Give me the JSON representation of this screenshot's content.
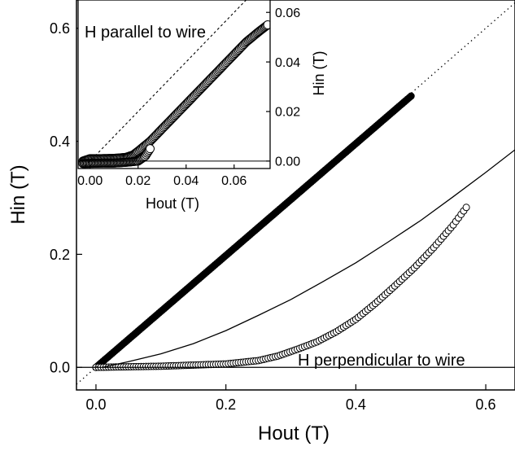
{
  "chart_data": [
    {
      "type": "scatter",
      "xlabel": "Hout (T)",
      "ylabel": "Hin (T)",
      "xlim": [
        -0.03,
        0.645
      ],
      "ylim": [
        -0.04,
        0.65
      ],
      "xticks": [
        "0.0",
        "0.2",
        "0.4",
        "0.6"
      ],
      "yticks": [
        "0.0",
        "0.2",
        "0.4",
        "0.6"
      ],
      "annotations": [
        "H perpendicular to wire"
      ],
      "series": [
        {
          "type": "scatter",
          "marker": "filled-circle",
          "x_from": 0.0,
          "x_to": 0.485,
          "values": [
            [
              0.0,
              0.0
            ],
            [
              0.485,
              0.48
            ]
          ]
        },
        {
          "type": "scatter",
          "marker": "open-circle",
          "values": [
            [
              0.0,
              0.0
            ],
            [
              0.05,
              0.001
            ],
            [
              0.1,
              0.002
            ],
            [
              0.15,
              0.004
            ],
            [
              0.2,
              0.006
            ],
            [
              0.25,
              0.012
            ],
            [
              0.28,
              0.02
            ],
            [
              0.31,
              0.032
            ],
            [
              0.34,
              0.045
            ],
            [
              0.37,
              0.063
            ],
            [
              0.4,
              0.085
            ],
            [
              0.43,
              0.113
            ],
            [
              0.46,
              0.144
            ],
            [
              0.49,
              0.176
            ],
            [
              0.52,
              0.212
            ],
            [
              0.55,
              0.252
            ],
            [
              0.57,
              0.283
            ]
          ]
        },
        {
          "type": "line",
          "style": "solid",
          "values": [
            [
              0.01,
              0.0
            ],
            [
              0.05,
              0.01
            ],
            [
              0.1,
              0.024
            ],
            [
              0.15,
              0.042
            ],
            [
              0.2,
              0.065
            ],
            [
              0.25,
              0.092
            ],
            [
              0.3,
              0.12
            ],
            [
              0.35,
              0.152
            ],
            [
              0.4,
              0.185
            ],
            [
              0.45,
              0.222
            ],
            [
              0.5,
              0.26
            ],
            [
              0.55,
              0.302
            ],
            [
              0.6,
              0.345
            ],
            [
              0.645,
              0.385
            ]
          ]
        },
        {
          "type": "line",
          "style": "dotted",
          "values": [
            [
              -0.03,
              -0.03
            ],
            [
              0.645,
              0.645
            ]
          ]
        },
        {
          "type": "line",
          "style": "solid",
          "values": [
            [
              -0.03,
              0.0
            ],
            [
              0.645,
              0.0
            ]
          ]
        }
      ]
    },
    {
      "type": "scatter",
      "xlabel": "Hout (T)",
      "ylabel": "Hin (T)",
      "xlim": [
        -0.005,
        0.075
      ],
      "ylim": [
        -0.003,
        0.065
      ],
      "xticks": [
        "0.00",
        "0.02",
        "0.04",
        "0.06"
      ],
      "yticks": [
        "0.00",
        "0.02",
        "0.04",
        "0.06"
      ],
      "annotations": [
        "H parallel to wire"
      ],
      "series": [
        {
          "type": "scatter",
          "marker": "open-circle",
          "values": [
            [
              -0.003,
              0.0
            ],
            [
              0.0,
              0.001
            ],
            [
              0.005,
              0.001
            ],
            [
              0.01,
              0.0011
            ],
            [
              0.015,
              0.0015
            ],
            [
              0.018,
              0.0025
            ],
            [
              0.02,
              0.004
            ],
            [
              0.025,
              0.008
            ],
            [
              0.03,
              0.013
            ],
            [
              0.035,
              0.018
            ],
            [
              0.04,
              0.023
            ],
            [
              0.045,
              0.028
            ],
            [
              0.05,
              0.033
            ],
            [
              0.055,
              0.038
            ],
            [
              0.06,
              0.043
            ],
            [
              0.065,
              0.048
            ],
            [
              0.07,
              0.052
            ],
            [
              0.074,
              0.055
            ]
          ]
        },
        {
          "type": "scatter",
          "marker": "open-circle",
          "values": [
            [
              -0.003,
              -0.001
            ],
            [
              0.005,
              -0.0008
            ],
            [
              0.01,
              -0.0008
            ],
            [
              0.015,
              -0.0005
            ],
            [
              0.02,
              0.0
            ],
            [
              0.023,
              0.002
            ],
            [
              0.025,
              0.005
            ]
          ]
        },
        {
          "type": "line",
          "style": "dashed",
          "values": [
            [
              -0.005,
              -0.005
            ],
            [
              0.068,
              0.068
            ]
          ]
        },
        {
          "type": "line",
          "style": "solid",
          "values": [
            [
              -0.005,
              0.0
            ],
            [
              0.075,
              0.0
            ]
          ]
        }
      ]
    }
  ]
}
